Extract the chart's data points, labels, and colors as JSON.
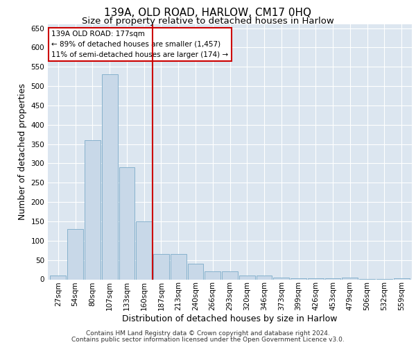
{
  "title": "139A, OLD ROAD, HARLOW, CM17 0HQ",
  "subtitle": "Size of property relative to detached houses in Harlow",
  "xlabel": "Distribution of detached houses by size in Harlow",
  "ylabel": "Number of detached properties",
  "categories": [
    "27sqm",
    "54sqm",
    "80sqm",
    "107sqm",
    "133sqm",
    "160sqm",
    "187sqm",
    "213sqm",
    "240sqm",
    "266sqm",
    "293sqm",
    "320sqm",
    "346sqm",
    "373sqm",
    "399sqm",
    "426sqm",
    "453sqm",
    "479sqm",
    "506sqm",
    "532sqm",
    "559sqm"
  ],
  "values": [
    10,
    130,
    360,
    530,
    290,
    150,
    65,
    65,
    40,
    20,
    20,
    10,
    10,
    5,
    3,
    3,
    2,
    5,
    1,
    1,
    2
  ],
  "bar_color": "#c8d8e8",
  "bar_edge_color": "#7aaac8",
  "vline_color": "#cc0000",
  "annotation_text": "139A OLD ROAD: 177sqm\n← 89% of detached houses are smaller (1,457)\n11% of semi-detached houses are larger (174) →",
  "annotation_box_color": "#cc0000",
  "ylim": [
    0,
    660
  ],
  "yticks": [
    0,
    50,
    100,
    150,
    200,
    250,
    300,
    350,
    400,
    450,
    500,
    550,
    600,
    650
  ],
  "plot_bg_color": "#dce6f0",
  "footer1": "Contains HM Land Registry data © Crown copyright and database right 2024.",
  "footer2": "Contains public sector information licensed under the Open Government Licence v3.0.",
  "title_fontsize": 11,
  "subtitle_fontsize": 9.5,
  "tick_fontsize": 7.5,
  "label_fontsize": 9,
  "annotation_fontsize": 7.5,
  "footer_fontsize": 6.5
}
